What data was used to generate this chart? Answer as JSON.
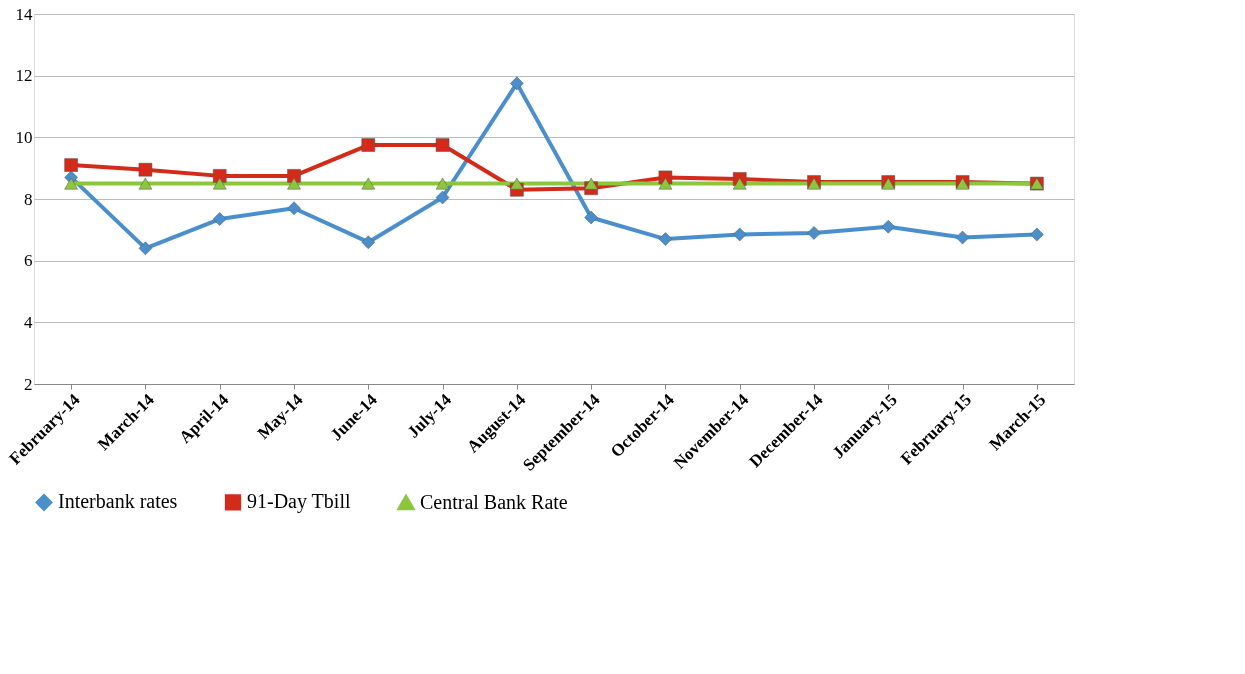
{
  "chart_data": {
    "type": "line",
    "categories": [
      "February-14",
      "March-14",
      "April-14",
      "May-14",
      "June-14",
      "July-14",
      "August-14",
      "September-14",
      "October-14",
      "November-14",
      "December-14",
      "January-15",
      "February-15",
      "March-15"
    ],
    "series": [
      {
        "name": "Interbank rates",
        "color": "#4a8fcc",
        "marker": "diamond",
        "values": [
          8.7,
          6.4,
          7.35,
          7.7,
          6.6,
          8.05,
          11.75,
          7.4,
          6.7,
          6.85,
          6.9,
          7.1,
          6.75,
          6.85
        ]
      },
      {
        "name": "91-Day Tbill",
        "color": "#d42a1a",
        "marker": "square",
        "values": [
          9.1,
          8.95,
          8.75,
          8.75,
          9.75,
          9.75,
          8.3,
          8.35,
          8.7,
          8.65,
          8.55,
          8.55,
          8.55,
          8.5
        ]
      },
      {
        "name": "Central Bank Rate",
        "color": "#8cc63e",
        "marker": "triangle",
        "values": [
          8.5,
          8.5,
          8.5,
          8.5,
          8.5,
          8.5,
          8.5,
          8.5,
          8.5,
          8.5,
          8.5,
          8.5,
          8.5,
          8.5
        ]
      }
    ],
    "ylim": [
      2,
      14
    ],
    "yticks": [
      2,
      4,
      6,
      8,
      10,
      12,
      14
    ],
    "grid": "y",
    "legend": "bottom"
  }
}
